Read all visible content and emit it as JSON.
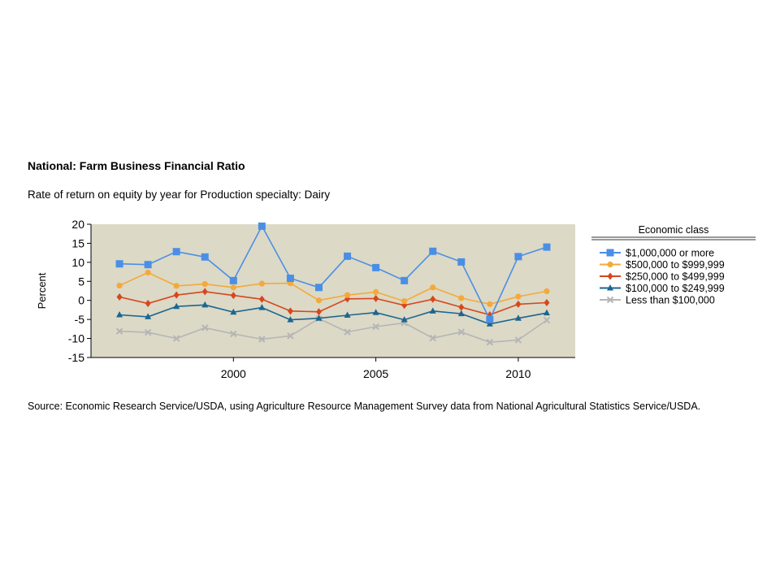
{
  "header": {
    "title": "National: Farm Business Financial Ratio",
    "subtitle": "Rate of return on equity by year for Production specialty: Dairy"
  },
  "footer": {
    "source": "Source: Economic Research Service/USDA, using Agriculture Resource Management Survey data from National Agricultural Statistics Service/USDA."
  },
  "chart_data": {
    "type": "line",
    "title": "National: Farm Business Financial Ratio",
    "subtitle": "Rate of return on equity by year for Production specialty: Dairy",
    "xlabel": "",
    "ylabel": "Percent",
    "x": [
      1996,
      1997,
      1998,
      1999,
      2000,
      2001,
      2002,
      2003,
      2004,
      2005,
      2006,
      2007,
      2008,
      2009,
      2010,
      2011
    ],
    "xlim": [
      1995,
      2012
    ],
    "xticks": [
      "2000",
      "2005",
      "2010"
    ],
    "xtick_values": [
      2000,
      2005,
      2010
    ],
    "ylim": [
      -15,
      20
    ],
    "yticks": [
      "20",
      "15",
      "10",
      "5",
      "0",
      "-5",
      "-10",
      "-15"
    ],
    "ytick_values": [
      20,
      15,
      10,
      5,
      0,
      -5,
      -10,
      -15
    ],
    "grid": false,
    "plot_background": "#dcd9c6",
    "legend": {
      "title": "Economic class",
      "placement": "right"
    },
    "series": [
      {
        "name": "$1,000,000 or more",
        "color": "#4a8fe6",
        "marker": "square",
        "values": [
          9.6,
          9.4,
          12.8,
          11.4,
          5.2,
          19.5,
          5.8,
          3.4,
          11.6,
          8.6,
          5.2,
          12.9,
          10.1,
          -5.0,
          11.5,
          14.0
        ]
      },
      {
        "name": "$500,000 to $999,999",
        "color": "#f4a93b",
        "marker": "circle",
        "values": [
          3.9,
          7.3,
          3.8,
          4.3,
          3.4,
          4.4,
          4.5,
          0.0,
          1.4,
          2.2,
          -0.2,
          3.4,
          0.6,
          -1.0,
          1.0,
          2.4
        ]
      },
      {
        "name": "$250,000 to $499,999",
        "color": "#d6471d",
        "marker": "diamond",
        "values": [
          0.9,
          -0.8,
          1.4,
          2.3,
          1.3,
          0.3,
          -2.8,
          -3.0,
          0.4,
          0.5,
          -1.3,
          0.3,
          -1.8,
          -3.8,
          -1.0,
          -0.6
        ]
      },
      {
        "name": "$100,000 to $249,999",
        "color": "#1c6690",
        "marker": "triangle",
        "values": [
          -3.8,
          -4.3,
          -1.6,
          -1.2,
          -3.1,
          -1.9,
          -5.1,
          -4.7,
          -3.9,
          -3.2,
          -5.1,
          -2.8,
          -3.5,
          -6.2,
          -4.7,
          -3.3
        ]
      },
      {
        "name": "Less than $100,000",
        "color": "#b5b5b5",
        "marker": "x",
        "values": [
          -8.1,
          -8.4,
          -10.0,
          -7.2,
          -8.8,
          -10.2,
          -9.3,
          -4.8,
          -8.3,
          -6.9,
          -5.9,
          -9.9,
          -8.3,
          -11.0,
          -10.4,
          -5.2
        ]
      }
    ]
  }
}
